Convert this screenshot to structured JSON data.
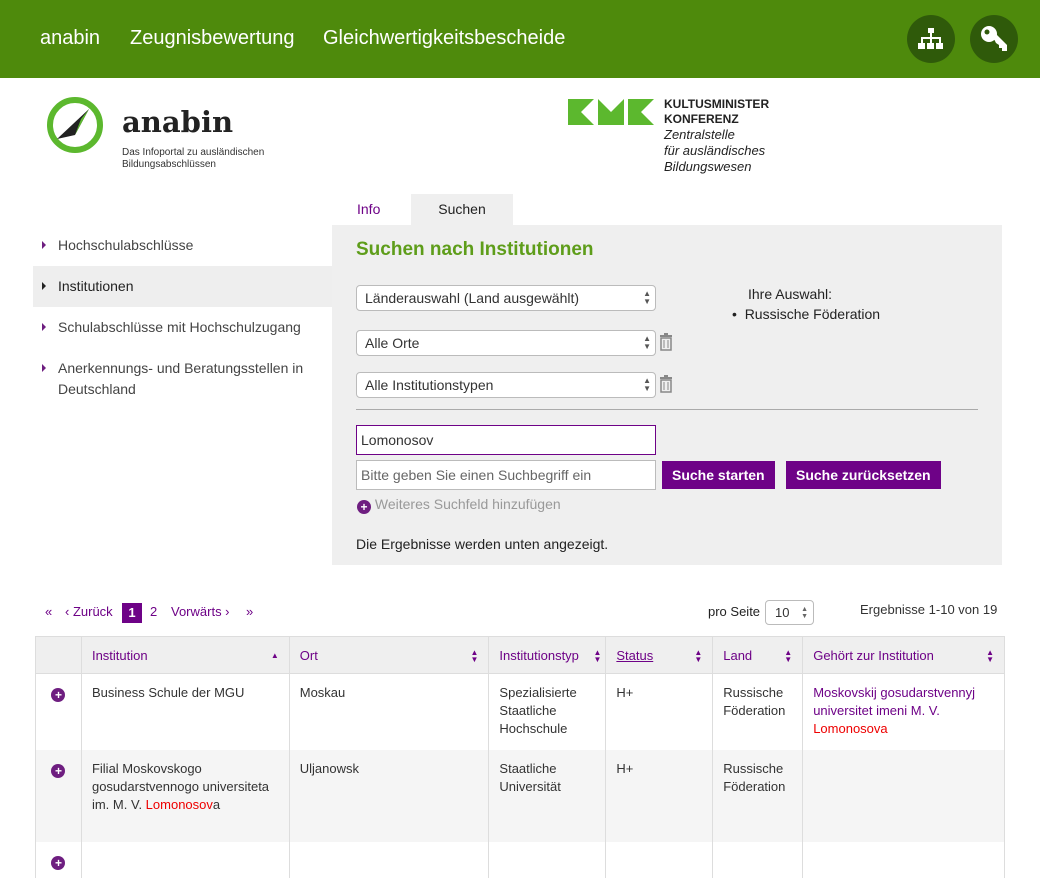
{
  "topnav": {
    "items": [
      "anabin",
      "Zeugnisbewertung",
      "Gleichwertigkeitsbescheide"
    ],
    "icons": [
      "sitemap-icon",
      "key-icon"
    ]
  },
  "logo": {
    "name": "anabin",
    "tagline_1": "Das Infoportal zu ausländischen",
    "tagline_2": "Bildungsabschlüssen"
  },
  "kmk": {
    "line1": "KULTUSMINISTER",
    "line2": "KONFERENZ",
    "line3": "Zentralstelle",
    "line4": "für ausländisches",
    "line5": "Bildungswesen"
  },
  "sidebar": {
    "items": [
      {
        "label": "Hochschulabschlüsse"
      },
      {
        "label": "Institutionen",
        "active": true
      },
      {
        "label": "Schulabschlüsse mit Hochschulzugang"
      },
      {
        "label": "Anerkennungs- und Beratungsstellen in Deutschland"
      }
    ]
  },
  "tabs": [
    {
      "label": "Info"
    },
    {
      "label": "Suchen",
      "active": true
    }
  ],
  "search": {
    "title": "Suchen nach Institutionen",
    "country_select": "Länderauswahl (Land ausgewählt)",
    "place_select": "Alle Orte",
    "type_select": "Alle Institutionstypen",
    "selection_label": "Ihre Auswahl:",
    "selection_items": [
      "Russische Föderation"
    ],
    "query_value": "Lomonosov",
    "query_placeholder": "Bitte geben Sie einen Suchbegriff ein",
    "start_label": "Suche starten",
    "reset_label": "Suche zurücksetzen",
    "add_field_label": "Weiteres Suchfeld hinzufügen",
    "results_note": "Die Ergebnisse werden unten angezeigt."
  },
  "pagination": {
    "first": "«",
    "prev": "‹ Zurück",
    "pages": [
      "1",
      "2"
    ],
    "current": "1",
    "next": "Vorwärts ›",
    "last": "»",
    "per_page_label": "pro Seite",
    "per_page": "10",
    "results_text": "Ergebnisse 1-10 von 19"
  },
  "table": {
    "columns": [
      "Institution",
      "Ort",
      "Institutionstyp",
      "Status",
      "Land",
      "Gehört zur Institution"
    ],
    "rows": [
      {
        "institution": {
          "pre": "Business Schule der MGU",
          "hl": "",
          "post": ""
        },
        "ort": "Moskau",
        "typ": "Spezialisierte Staatliche Hochschule",
        "status": "H+",
        "land": "Russische Föderation",
        "parent": {
          "pre": "Moskovskij gosudarstvennyj universitet imeni M. V. ",
          "hl": "Lomonosova",
          "post": ""
        }
      },
      {
        "institution": {
          "pre": "Filial Moskovskogo gosudarstvennogo universiteta im. M. V. ",
          "hl": "Lomonosov",
          "post": "a"
        },
        "ort": "Uljanowsk",
        "typ": "Staatliche Universität",
        "status": "H+",
        "land": "Russische Föderation",
        "parent": {
          "pre": "",
          "hl": "",
          "post": ""
        }
      }
    ]
  },
  "colors": {
    "header_green": "#4e8a0c",
    "accent_purple": "#6e0287",
    "highlight_red": "#e00000"
  }
}
